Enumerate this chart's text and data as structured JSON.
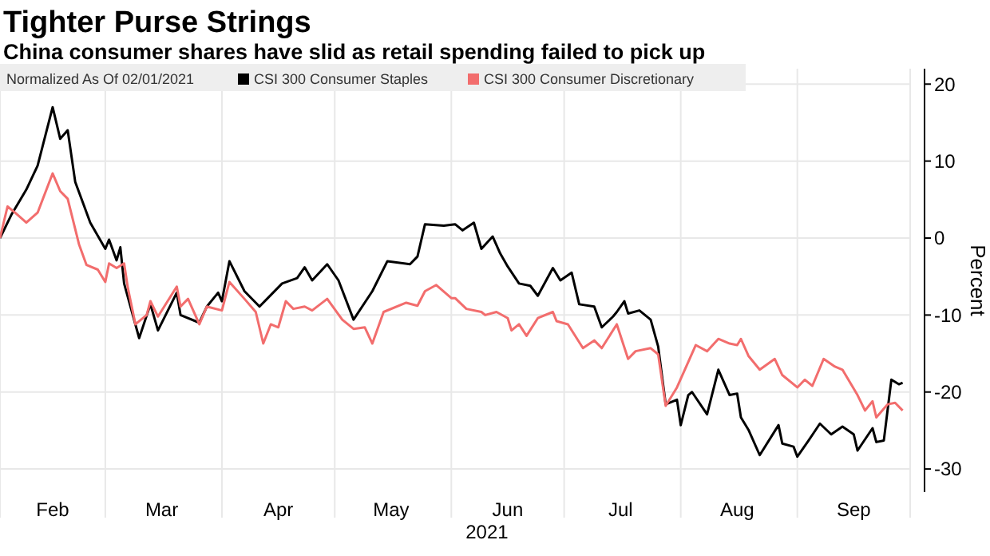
{
  "chart_data": {
    "type": "line",
    "title": "Tighter Purse Strings",
    "subtitle": "China consumer shares have slid as retail spending failed to pick up",
    "legend_title": "Normalized As Of 02/01/2021",
    "ylabel": "Percent",
    "xlabel": "2021",
    "legend": "top",
    "grid": true,
    "line_style": "solid",
    "marker": "none",
    "xlim": [
      "2021-02-01",
      "2021-10-01"
    ],
    "xticks": [
      {
        "value": "2021-02-01",
        "label": null
      },
      {
        "value": "2021-02-15",
        "label": "Feb"
      },
      {
        "value": "2021-03-01",
        "label": null
      },
      {
        "value": "2021-03-16",
        "label": "Mar"
      },
      {
        "value": "2021-04-01",
        "label": null
      },
      {
        "value": "2021-04-16",
        "label": "Apr"
      },
      {
        "value": "2021-05-01",
        "label": null
      },
      {
        "value": "2021-05-16",
        "label": "May"
      },
      {
        "value": "2021-06-01",
        "label": null
      },
      {
        "value": "2021-06-16",
        "label": "Jun"
      },
      {
        "value": "2021-07-01",
        "label": null
      },
      {
        "value": "2021-07-16",
        "label": "Jul"
      },
      {
        "value": "2021-08-01",
        "label": null
      },
      {
        "value": "2021-08-16",
        "label": "Aug"
      },
      {
        "value": "2021-09-01",
        "label": null
      },
      {
        "value": "2021-09-16",
        "label": "Sep"
      },
      {
        "value": "2021-10-01",
        "label": null
      }
    ],
    "ylim": [
      -33,
      22
    ],
    "yticks": [
      -30,
      -20,
      -10,
      0,
      10,
      20
    ],
    "series": [
      {
        "name": "CSI 300 Consumer Staples",
        "color": "#000000",
        "x": [
          "2021-02-01",
          "2021-02-04",
          "2021-02-08",
          "2021-02-11",
          "2021-02-15",
          "2021-02-17",
          "2021-02-19",
          "2021-02-21",
          "2021-02-25",
          "2021-03-01",
          "2021-03-02",
          "2021-03-04",
          "2021-03-05",
          "2021-03-06",
          "2021-03-10",
          "2021-03-13",
          "2021-03-15",
          "2021-03-20",
          "2021-03-21",
          "2021-03-26",
          "2021-03-28",
          "2021-03-31",
          "2021-04-01",
          "2021-04-03",
          "2021-04-07",
          "2021-04-11",
          "2021-04-13",
          "2021-04-17",
          "2021-04-21",
          "2021-04-23",
          "2021-04-25",
          "2021-04-29",
          "2021-05-02",
          "2021-05-06",
          "2021-05-11",
          "2021-05-15",
          "2021-05-21",
          "2021-05-23",
          "2021-05-25",
          "2021-05-30",
          "2021-06-02",
          "2021-06-04",
          "2021-06-07",
          "2021-06-09",
          "2021-06-12",
          "2021-06-14",
          "2021-06-16",
          "2021-06-19",
          "2021-06-22",
          "2021-06-24",
          "2021-06-28",
          "2021-06-30",
          "2021-07-03",
          "2021-07-05",
          "2021-07-09",
          "2021-07-11",
          "2021-07-14",
          "2021-07-15",
          "2021-07-17",
          "2021-07-18",
          "2021-07-21",
          "2021-07-24",
          "2021-07-26",
          "2021-07-28",
          "2021-07-31",
          "2021-08-01",
          "2021-08-03",
          "2021-08-04",
          "2021-08-08",
          "2021-08-11",
          "2021-08-14",
          "2021-08-16",
          "2021-08-17",
          "2021-08-19",
          "2021-08-22",
          "2021-08-27",
          "2021-08-28",
          "2021-08-31",
          "2021-09-01",
          "2021-09-04",
          "2021-09-07",
          "2021-09-10",
          "2021-09-13",
          "2021-09-16",
          "2021-09-17",
          "2021-09-21",
          "2021-09-22",
          "2021-09-24",
          "2021-09-26",
          "2021-09-28",
          "2021-09-29"
        ],
        "values": [
          0,
          3,
          6.3,
          9.4,
          17,
          12.9,
          14,
          7.3,
          2,
          -1.4,
          -0.2,
          -2.9,
          -1.2,
          -5.9,
          -13,
          -8.6,
          -12,
          -7.1,
          -10,
          -11,
          -8.9,
          -7.1,
          -8.2,
          -3,
          -6.9,
          -8.9,
          -7.9,
          -5.9,
          -5.2,
          -3.8,
          -5.5,
          -3.4,
          -5.5,
          -10.6,
          -6.9,
          -3,
          -3.4,
          -2.4,
          1.8,
          1.6,
          1.8,
          1,
          2,
          -1.4,
          0.2,
          -2,
          -3.7,
          -5.9,
          -6.2,
          -7.5,
          -3.9,
          -5.5,
          -4.5,
          -8.6,
          -8.9,
          -11.6,
          -10.2,
          -9.6,
          -8.2,
          -9.8,
          -9.4,
          -10.6,
          -14.1,
          -21.6,
          -21,
          -24.3,
          -20.4,
          -20,
          -22.9,
          -17.1,
          -20.4,
          -20.2,
          -23.3,
          -24.9,
          -28.2,
          -24.3,
          -26.7,
          -27.1,
          -28.4,
          -26.3,
          -24.1,
          -25.5,
          -24.5,
          -25.5,
          -27.6,
          -24.7,
          -26.5,
          -26.3,
          -18.4,
          -19,
          -18.8
        ]
      },
      {
        "name": "CSI 300 Consumer Discretionary",
        "color": "#f26d6d",
        "x": [
          "2021-02-01",
          "2021-02-03",
          "2021-02-05",
          "2021-02-08",
          "2021-02-11",
          "2021-02-15",
          "2021-02-17",
          "2021-02-19",
          "2021-02-22",
          "2021-02-24",
          "2021-02-27",
          "2021-03-01",
          "2021-03-02",
          "2021-03-04",
          "2021-03-06",
          "2021-03-07",
          "2021-03-09",
          "2021-03-12",
          "2021-03-13",
          "2021-03-15",
          "2021-03-20",
          "2021-03-21",
          "2021-03-23",
          "2021-03-26",
          "2021-03-28",
          "2021-04-01",
          "2021-04-03",
          "2021-04-07",
          "2021-04-10",
          "2021-04-12",
          "2021-04-14",
          "2021-04-16",
          "2021-04-18",
          "2021-04-20",
          "2021-04-23",
          "2021-04-25",
          "2021-04-29",
          "2021-05-03",
          "2021-05-06",
          "2021-05-09",
          "2021-05-11",
          "2021-05-14",
          "2021-05-20",
          "2021-05-23",
          "2021-05-25",
          "2021-05-28",
          "2021-06-01",
          "2021-06-02",
          "2021-06-05",
          "2021-06-09",
          "2021-06-10",
          "2021-06-13",
          "2021-06-16",
          "2021-06-17",
          "2021-06-19",
          "2021-06-21",
          "2021-06-24",
          "2021-06-28",
          "2021-06-29",
          "2021-07-02",
          "2021-07-06",
          "2021-07-09",
          "2021-07-11",
          "2021-07-15",
          "2021-07-18",
          "2021-07-20",
          "2021-07-24",
          "2021-07-26",
          "2021-07-28",
          "2021-07-31",
          "2021-08-03",
          "2021-08-05",
          "2021-08-08",
          "2021-08-11",
          "2021-08-14",
          "2021-08-16",
          "2021-08-17",
          "2021-08-19",
          "2021-08-22",
          "2021-08-26",
          "2021-08-28",
          "2021-09-01",
          "2021-09-03",
          "2021-09-05",
          "2021-09-08",
          "2021-09-11",
          "2021-09-13",
          "2021-09-17",
          "2021-09-19",
          "2021-09-21",
          "2021-09-22",
          "2021-09-25",
          "2021-09-27",
          "2021-09-29"
        ],
        "values": [
          0,
          4.1,
          3.3,
          2,
          3.3,
          8.4,
          6.1,
          5.1,
          -0.8,
          -3.5,
          -4.1,
          -5.7,
          -3.3,
          -3.9,
          -3.3,
          -6.5,
          -11.2,
          -10,
          -8.2,
          -10.2,
          -6.3,
          -8.9,
          -7.9,
          -11.2,
          -8.9,
          -9.4,
          -5.7,
          -7.9,
          -9.6,
          -13.7,
          -11.2,
          -11.6,
          -8.2,
          -9.2,
          -8.9,
          -9.4,
          -7.9,
          -10.6,
          -11.8,
          -11.6,
          -13.7,
          -9.6,
          -8.4,
          -8.8,
          -6.9,
          -6.1,
          -7.8,
          -7.8,
          -9.2,
          -9.6,
          -10,
          -9.6,
          -10.4,
          -12,
          -11.2,
          -12.7,
          -10.4,
          -9.6,
          -10.8,
          -11.2,
          -14.3,
          -13.3,
          -14.3,
          -11.2,
          -15.7,
          -14.7,
          -14.3,
          -15.1,
          -21.8,
          -19.4,
          -16.1,
          -13.9,
          -14.7,
          -13.1,
          -13.7,
          -13.9,
          -13.1,
          -15.3,
          -17.1,
          -15.7,
          -17.8,
          -19.4,
          -18.4,
          -19.2,
          -15.7,
          -16.7,
          -17.1,
          -20.4,
          -22.4,
          -21.2,
          -23.3,
          -21.6,
          -21.4,
          -22.4
        ]
      }
    ]
  }
}
